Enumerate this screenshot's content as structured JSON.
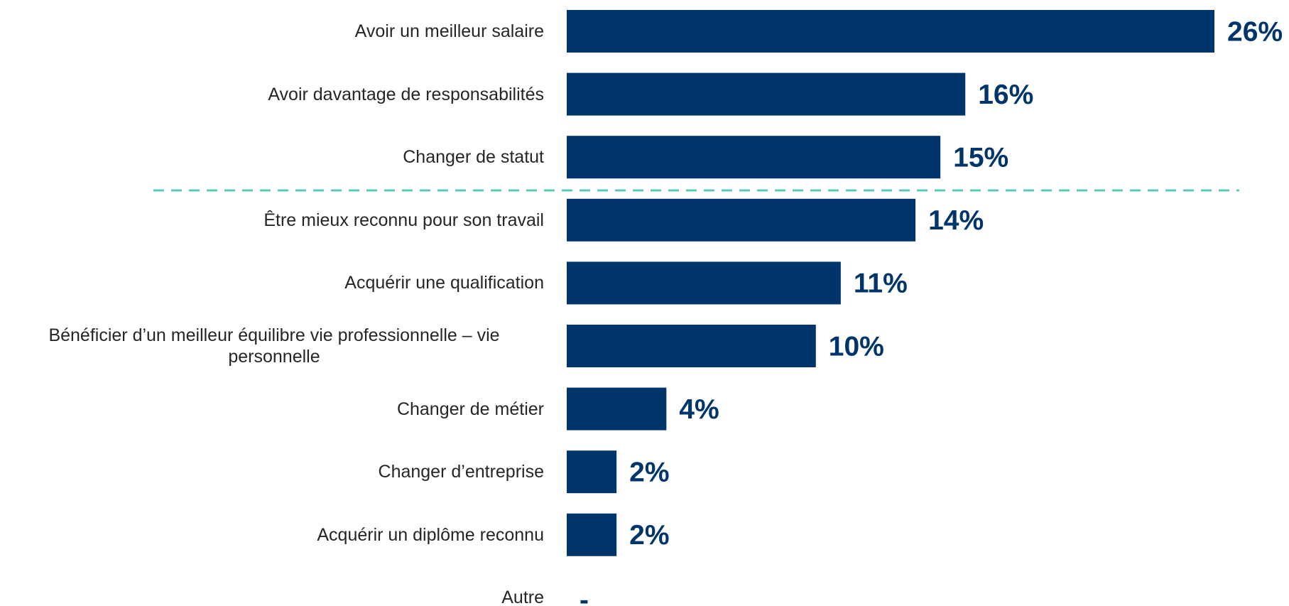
{
  "chart_data": {
    "type": "bar",
    "orientation": "horizontal",
    "categories": [
      "Avoir un meilleur salaire",
      "Avoir davantage de responsabilités",
      "Changer de statut",
      "Être mieux reconnu pour son travail",
      "Acquérir une qualification",
      "Bénéficier d’un meilleur équilibre vie professionnelle – vie personnelle",
      "Changer de métier",
      "Changer d’entreprise",
      "Acquérir un diplôme reconnu",
      "Autre"
    ],
    "values": [
      26,
      16,
      15,
      14,
      11,
      10,
      4,
      2,
      2,
      null
    ],
    "value_labels": [
      "26%",
      "16%",
      "15%",
      "14%",
      "11%",
      "10%",
      "4%",
      "2%",
      "2%",
      "-"
    ],
    "color": "#00356b",
    "xlim": [
      0,
      26
    ]
  }
}
